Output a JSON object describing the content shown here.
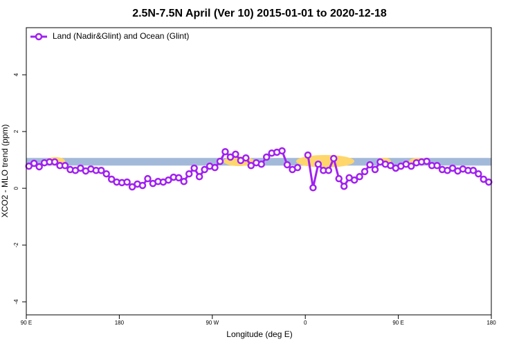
{
  "chart_data": {
    "type": "line",
    "title": "2.5N-7.5N April (Ver 10)   2015-01-01 to 2020-12-18",
    "x_label": "Longitude (deg E)",
    "y_label": "XCO2 - MLO trend (ppm)",
    "legend": "top-left",
    "band_range": [
      0.8,
      1.07
    ],
    "band_color": "#a3b9d9",
    "x": [
      92.5,
      97.5,
      102.5,
      107.5,
      112.5,
      117.5,
      122.5,
      127.5,
      132.5,
      137.5,
      142.5,
      147.5,
      152.5,
      157.5,
      162.5,
      167.5,
      172.5,
      177.5,
      182.5,
      187.5,
      192.5,
      197.5,
      202.5,
      207.5,
      212.5,
      217.5,
      222.5,
      227.5,
      232.5,
      237.5,
      242.5,
      247.5,
      252.5,
      257.5,
      262.5,
      267.5,
      272.5,
      277.5,
      282.5,
      287.5,
      292.5,
      297.5,
      302.5,
      307.5,
      312.5,
      317.5,
      322.5,
      327.5,
      332.5,
      337.5,
      342.5,
      347.5,
      352.5,
      357.5,
      362.5,
      367.5,
      372.5,
      377.5,
      382.5,
      387.5,
      392.5,
      397.5,
      402.5,
      407.5,
      412.5,
      417.5,
      422.5,
      427.5,
      432.5,
      437.5,
      442.5,
      447.5,
      452.5,
      457.5,
      462.5,
      467.5,
      472.5,
      477.5,
      482.5,
      487.5,
      492.5,
      497.5,
      502.5,
      507.5,
      512.5,
      517.5,
      522.5,
      527.5,
      532.5,
      537.5
    ],
    "series": [
      {
        "name": "Land (Nadir&Glint) and Ocean (Glint)",
        "color": "#a020f0",
        "values": [
          0.78,
          0.88,
          0.76,
          0.9,
          0.93,
          0.93,
          0.8,
          0.8,
          0.66,
          0.63,
          0.71,
          0.61,
          0.68,
          0.63,
          0.63,
          0.51,
          0.32,
          0.22,
          0.2,
          0.22,
          0.05,
          0.15,
          0.1,
          0.34,
          0.17,
          0.24,
          0.22,
          0.29,
          0.39,
          0.37,
          0.24,
          0.51,
          0.71,
          0.41,
          0.66,
          0.78,
          0.73,
          0.95,
          1.29,
          1.1,
          1.2,
          0.98,
          1.07,
          0.8,
          0.9,
          0.85,
          1.1,
          1.24,
          1.27,
          1.32,
          0.83,
          0.66,
          0.73,
          null,
          1.17,
          0.02,
          0.85,
          0.63,
          0.63,
          1.05,
          0.34,
          0.07,
          0.37,
          0.29,
          0.41,
          0.59,
          0.83,
          0.66,
          0.93,
          0.85,
          0.8,
          0.71,
          0.78,
          0.85,
          0.78,
          0.9,
          0.93,
          0.95,
          0.8,
          0.8,
          0.66,
          0.63,
          0.71,
          0.61,
          0.68,
          0.63,
          0.63,
          0.51,
          0.32,
          0.22
        ]
      }
    ],
    "xlim": [
      90,
      540
    ],
    "xticks": [
      {
        "value": 90,
        "label": "90 E"
      },
      {
        "value": 180,
        "label": "180"
      },
      {
        "value": 270,
        "label": "90 W"
      },
      {
        "value": 360,
        "label": "0"
      },
      {
        "value": 450,
        "label": "90 E"
      },
      {
        "value": 540,
        "label": "180"
      }
    ],
    "ylim": [
      -4.46,
      5.66
    ],
    "yticks": [
      -4,
      -2,
      0,
      2,
      4
    ]
  }
}
